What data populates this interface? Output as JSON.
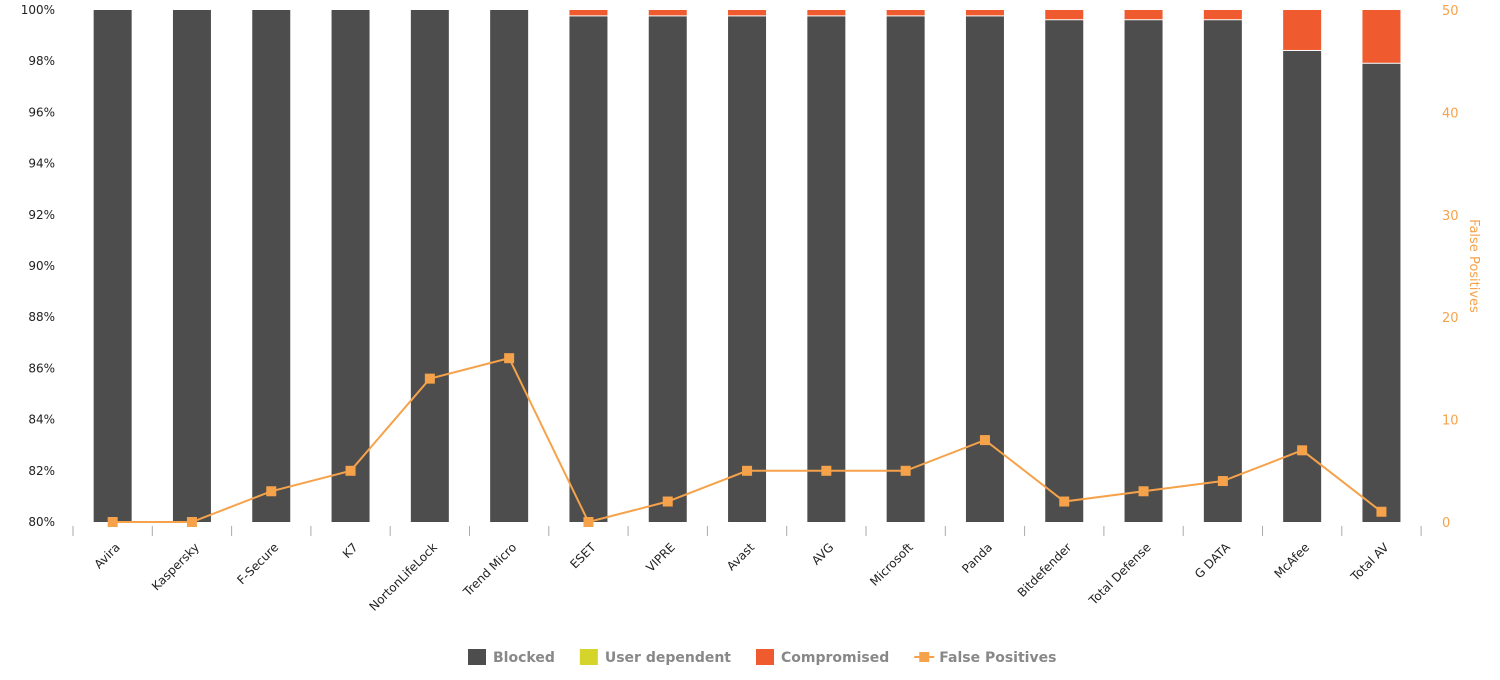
{
  "chart_data": {
    "type": "bar",
    "categories": [
      "Avira",
      "Kaspersky",
      "F-Secure",
      "K7",
      "NortonLifeLock",
      "Trend Micro",
      "ESET",
      "VIPRE",
      "Avast",
      "AVG",
      "Microsoft",
      "Panda",
      "Bitdefender",
      "Total Defense",
      "G DATA",
      "McAfee",
      "Total AV"
    ],
    "series": [
      {
        "name": "Blocked",
        "type": "stacked-bar",
        "axis": "left",
        "color": "#4d4d4d",
        "values": [
          100,
          100,
          100,
          100,
          100,
          100,
          99.75,
          99.75,
          99.75,
          99.75,
          99.75,
          99.75,
          99.6,
          99.6,
          99.6,
          98.4,
          97.9
        ]
      },
      {
        "name": "User dependent",
        "type": "stacked-bar",
        "axis": "left",
        "color": "#d4d42b",
        "values": [
          0,
          0,
          0,
          0,
          0,
          0,
          0,
          0,
          0,
          0,
          0,
          0,
          0,
          0,
          0,
          0,
          0
        ]
      },
      {
        "name": "Compromised",
        "type": "stacked-bar",
        "axis": "left",
        "color": "#ef5a2f",
        "values": [
          0,
          0,
          0,
          0,
          0,
          0,
          0.25,
          0.25,
          0.25,
          0.25,
          0.25,
          0.25,
          0.4,
          0.4,
          0.4,
          1.6,
          2.1
        ]
      },
      {
        "name": "False Positives",
        "type": "line",
        "axis": "right",
        "color": "#f5a24a",
        "values": [
          0,
          0,
          3,
          5,
          14,
          16,
          0,
          2,
          5,
          5,
          5,
          8,
          2,
          3,
          4,
          7,
          1
        ]
      }
    ],
    "left_axis": {
      "ylim": [
        80,
        100
      ],
      "ticks": [
        "80%",
        "82%",
        "84%",
        "86%",
        "88%",
        "90%",
        "92%",
        "94%",
        "96%",
        "98%",
        "100%"
      ]
    },
    "right_axis": {
      "label": "False Positives",
      "ylim": [
        0,
        50
      ],
      "ticks": [
        "0",
        "10",
        "20",
        "30",
        "40",
        "50"
      ]
    },
    "legend": "bottom",
    "grid": false
  }
}
